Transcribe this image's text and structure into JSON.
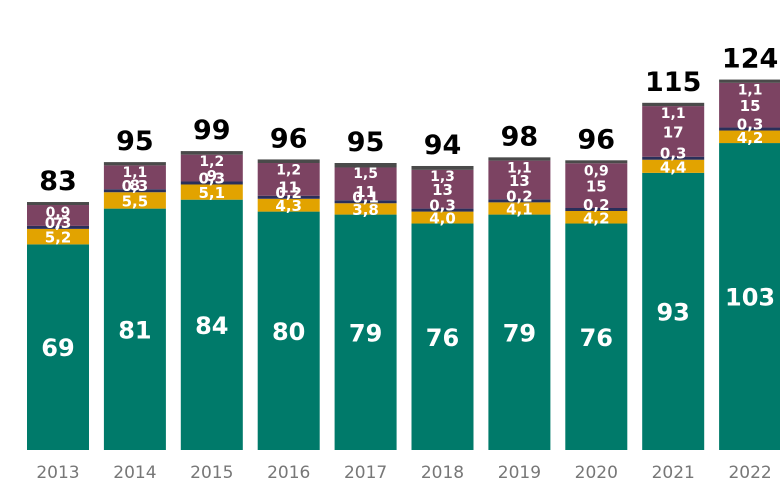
{
  "title": "",
  "colors": {
    "teal": "#007a6a",
    "gold": "#e2a300",
    "purple": "#7c4362",
    "navy": "#2a2f5a",
    "gray": "#4a4a4a",
    "axis_text": "#777777"
  },
  "chart_data": {
    "type": "bar",
    "stacked": true,
    "categories": [
      "2013",
      "2014",
      "2015",
      "2016",
      "2017",
      "2018",
      "2019",
      "2020",
      "2021",
      "2022"
    ],
    "totals": [
      83,
      95,
      99,
      96,
      95,
      94,
      98,
      96,
      115,
      124
    ],
    "total_labels": [
      "83",
      "95",
      "99",
      "96",
      "95",
      "94",
      "98",
      "96",
      "115",
      "124"
    ],
    "series": [
      {
        "color_key": "teal",
        "values": [
          69,
          81,
          84,
          80,
          79,
          76,
          79,
          76,
          93,
          103
        ],
        "labels": [
          "69",
          "81",
          "84",
          "80",
          "79",
          "76",
          "79",
          "76",
          "93",
          "103"
        ]
      },
      {
        "color_key": "gold",
        "values": [
          5.2,
          5.5,
          5.1,
          4.3,
          3.8,
          4.0,
          4.1,
          4.2,
          4.4,
          4.2
        ],
        "labels": [
          "5,2",
          "5,5",
          "5,1",
          "4,3",
          "3,8",
          "4,0",
          "4,1",
          "4,2",
          "4,4",
          "4,2"
        ]
      },
      {
        "color_key": "navy",
        "values": [
          0.3,
          0.3,
          0.3,
          0.2,
          0.1,
          0.3,
          0.2,
          0.2,
          0.3,
          0.3
        ],
        "labels": [
          "0,3",
          "0,3",
          "0,3",
          "0,2",
          "0,1",
          "0,3",
          "0,2",
          "0,2",
          "0,3",
          "0,3"
        ]
      },
      {
        "color_key": "purple",
        "values": [
          7,
          8,
          9,
          11,
          11,
          13,
          13,
          15,
          17,
          15
        ],
        "labels": [
          "7",
          "8",
          "9",
          "11",
          "11",
          "13",
          "13",
          "15",
          "17",
          "15"
        ]
      },
      {
        "color_key": "gray",
        "values": [
          0.9,
          1.1,
          1.2,
          1.2,
          1.5,
          1.3,
          1.1,
          0.9,
          1.1,
          1.1
        ],
        "labels": [
          "0,9",
          "1,1",
          "1,2",
          "1,2",
          "1,5",
          "1,3",
          "1,1",
          "0,9",
          "1,1",
          "1,1"
        ]
      }
    ],
    "xlabel": "",
    "ylabel": "",
    "legend": "none",
    "grid": false
  }
}
